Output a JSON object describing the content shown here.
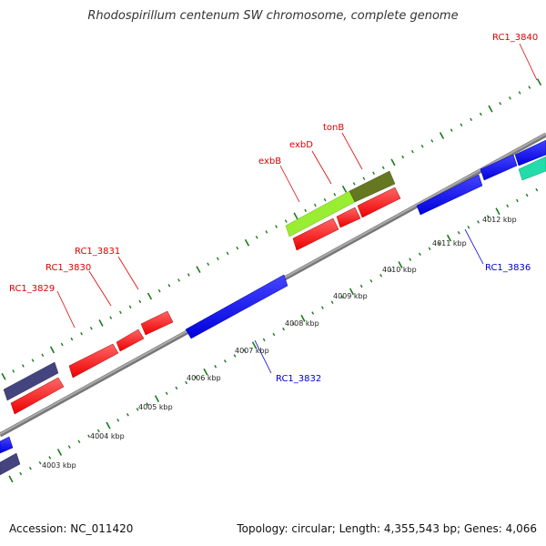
{
  "title": "Rhodospirillum centenum SW chromosome, complete genome",
  "footer": {
    "accession": "Accession: NC_011420",
    "summary": "Topology: circular; Length: 4,355,543 bp; Genes: 4,066"
  },
  "colors": {
    "forward_gene": "#ff1a1a",
    "reverse_gene": "#1a1aee",
    "forward_label": "#dd0000",
    "reverse_label": "#0000cc",
    "backbone": "#888888",
    "tick": "#1a7a1a",
    "exbB": "#99ee33",
    "tonB": "#667722",
    "dark_gene": "#444488",
    "teal_gene": "#22ddaa"
  },
  "scale_labels": [
    "4003 kbp",
    "4004 kbp",
    "4005 kbp",
    "4006 kbp",
    "4007 kbp",
    "4008 kbp",
    "4009 kbp",
    "4010 kbp",
    "4011 kbp",
    "4012 kbp"
  ],
  "labels": [
    {
      "text": "RC1_3829"
    },
    {
      "text": "RC1_3830"
    },
    {
      "text": "RC1_3831"
    },
    {
      "text": "exbB"
    },
    {
      "text": "exbD"
    },
    {
      "text": "tonB"
    },
    {
      "text": "RC1_3840"
    },
    {
      "text": "RC1_3832"
    },
    {
      "text": "RC1_3836"
    }
  ]
}
